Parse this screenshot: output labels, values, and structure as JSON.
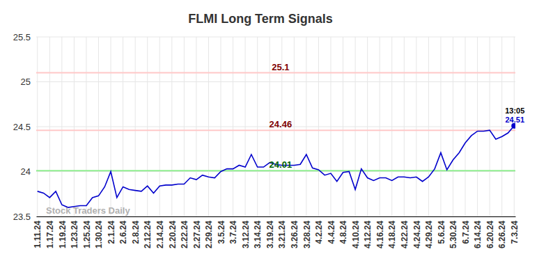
{
  "chart_data": {
    "type": "line",
    "title": "FLMI Long Term Signals",
    "watermark": "Stock Traders Daily",
    "categories": [
      "1.11.24",
      null,
      "1.17.24",
      null,
      "1.19.24",
      null,
      "1.23.24",
      null,
      "1.25.24",
      null,
      "1.30.24",
      null,
      "2.1.24",
      null,
      "2.6.24",
      null,
      "2.8.24",
      null,
      "2.12.24",
      null,
      "2.14.24",
      null,
      "2.20.24",
      null,
      "2.22.24",
      null,
      "2.27.24",
      null,
      "2.29.24",
      null,
      "3.5.24",
      null,
      "3.7.24",
      null,
      "3.12.24",
      null,
      "3.14.24",
      null,
      "3.19.24",
      null,
      "3.21.24",
      null,
      "3.26.24",
      null,
      "3.28.24",
      null,
      "4.2.24",
      null,
      "4.4.24",
      null,
      "4.8.24",
      null,
      "4.10.24",
      null,
      "4.12.24",
      null,
      "4.16.24",
      null,
      "4.18.24",
      null,
      "4.22.24",
      null,
      "4.24.24",
      null,
      "4.29.24",
      null,
      "5.6.24",
      null,
      "5.30.24",
      null,
      "6.7.24",
      null,
      "6.14.24",
      null,
      "6.20.24",
      null,
      "6.26.24",
      null,
      "7.3.24"
    ],
    "series": [
      {
        "name": "FLMI",
        "color": "#0000cc",
        "values": [
          23.78,
          23.76,
          23.71,
          23.78,
          23.63,
          23.6,
          23.61,
          23.62,
          23.62,
          23.71,
          23.73,
          23.83,
          24.0,
          23.71,
          23.83,
          23.8,
          23.79,
          23.78,
          23.84,
          23.76,
          23.84,
          23.85,
          23.85,
          23.86,
          23.86,
          23.93,
          23.91,
          23.96,
          23.94,
          23.93,
          24.0,
          24.03,
          24.03,
          24.07,
          24.05,
          24.19,
          24.05,
          24.05,
          24.1,
          24.08,
          24.07,
          24.07,
          24.07,
          24.08,
          24.19,
          24.04,
          24.02,
          23.96,
          23.98,
          23.89,
          23.99,
          24.0,
          23.8,
          24.03,
          23.93,
          23.9,
          23.93,
          23.93,
          23.9,
          23.94,
          23.94,
          23.93,
          23.94,
          23.89,
          23.94,
          24.03,
          24.21,
          24.02,
          24.13,
          24.21,
          24.32,
          24.4,
          24.45,
          24.45,
          24.46,
          24.36,
          24.39,
          24.43,
          24.51
        ]
      }
    ],
    "reference_lines": [
      {
        "value": 25.1,
        "label": "25.1",
        "color": "#ffc8c8",
        "label_color": "#800000"
      },
      {
        "value": 24.46,
        "label": "24.46",
        "color": "#ffc8c8",
        "label_color": "#800000"
      },
      {
        "value": 24.01,
        "label": "24.01",
        "color": "#90ee90",
        "label_color": "#006400"
      }
    ],
    "last_point": {
      "time": "13:05",
      "label": "24.51"
    },
    "ylim": [
      23.5,
      25.5
    ],
    "yticks": [
      23.5,
      24,
      24.5,
      25,
      25.5
    ],
    "grid": true
  }
}
